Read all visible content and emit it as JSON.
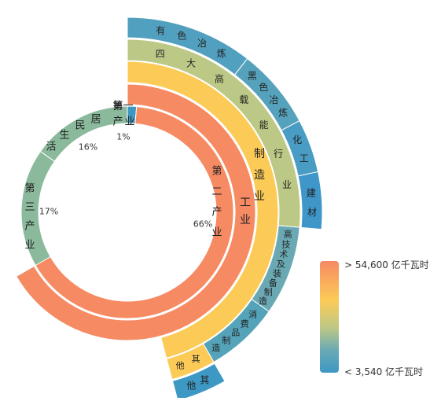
{
  "chart_data": {
    "type": "sunburst",
    "center_label": "",
    "ring1": [
      {
        "name": "第一产业",
        "share": 1,
        "percent_label": "1%",
        "color": "#3d98c4"
      },
      {
        "name": "第二产业",
        "share": 66,
        "percent_label": "66%",
        "color": "#f68a63"
      },
      {
        "name": "第三产业",
        "share": 17,
        "percent_label": "17%",
        "color": "#8ab99c"
      },
      {
        "name": "居民生活",
        "share": 16,
        "percent_label": "16%",
        "color": "#8ab99c"
      }
    ],
    "ring2": [
      {
        "name": "工业",
        "parent": "第二产业",
        "color": "#f68a63"
      }
    ],
    "ring3": [
      {
        "name": "制造业",
        "parent": "工业",
        "color": "#fccb57"
      }
    ],
    "ring4": [
      {
        "name": "四大高载能行业",
        "parent": "制造业",
        "color": "#bcc886"
      },
      {
        "name": "高技术及装备制造",
        "parent": "制造业",
        "color": "#55a3b9"
      },
      {
        "name": "消费品制造",
        "parent": "制造业",
        "color": "#4c9fc0"
      },
      {
        "name": "其他",
        "parent": "制造业",
        "color": "#fccb57"
      }
    ],
    "ring5": [
      {
        "name": "有色冶炼",
        "parent": "四大高载能行业",
        "color": "#52a0bf"
      },
      {
        "name": "黑色冶炼",
        "parent": "四大高载能行业",
        "color": "#56a2bc"
      },
      {
        "name": "化工",
        "parent": "四大高载能行业",
        "color": "#499cc3"
      },
      {
        "name": "建材",
        "parent": "四大高载能行业",
        "color": "#3e96c9"
      },
      {
        "name": "其他",
        "parent": "制造业",
        "color": "#3d98c4"
      }
    ],
    "color_scale": {
      "max_label": "> 54,600 亿千瓦时",
      "min_label": "< 3,540 亿千瓦时",
      "colors": [
        "#f68a63",
        "#fccb57",
        "#bcc886",
        "#6aa9b4",
        "#3d98c4"
      ]
    }
  }
}
